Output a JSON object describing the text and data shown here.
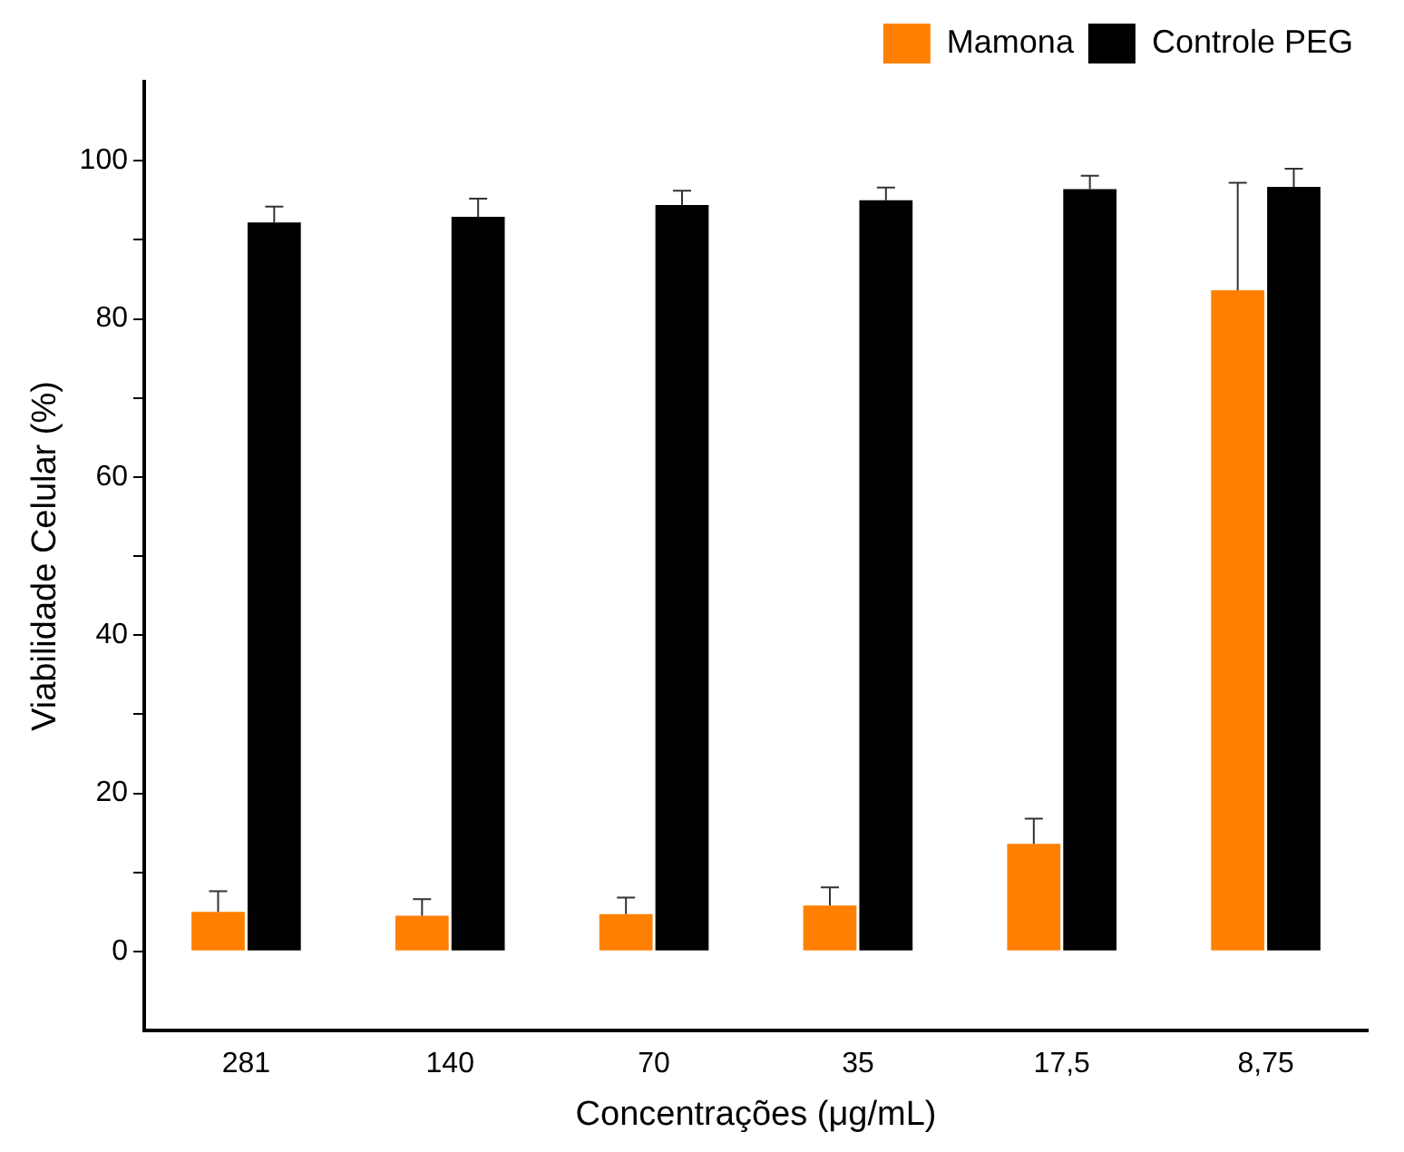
{
  "chart_data": {
    "type": "bar",
    "xlabel": "Concentrações (μg/mL)",
    "ylabel": "Viabilidade Celular (%)",
    "categories": [
      "281",
      "140",
      "70",
      "35",
      "17,5",
      "8,75"
    ],
    "series": [
      {
        "name": "Mamona",
        "color": "#ff8000",
        "values": [
          5.0,
          4.5,
          4.7,
          5.8,
          13.6,
          83.6
        ],
        "errors": [
          [
            5.0,
            7.6
          ],
          [
            4.5,
            6.6
          ],
          [
            4.7,
            6.8
          ],
          [
            5.8,
            8.1
          ],
          [
            13.6,
            16.8
          ],
          [
            83.6,
            97.2
          ]
        ]
      },
      {
        "name": "Controle PEG",
        "color": "#000000",
        "values": [
          92.2,
          92.9,
          94.4,
          95.0,
          96.4,
          96.7
        ],
        "errors": [
          [
            92.2,
            94.2
          ],
          [
            92.9,
            95.2
          ],
          [
            94.4,
            96.2
          ],
          [
            95.0,
            96.6
          ],
          [
            96.4,
            98.1
          ],
          [
            96.7,
            99.0
          ]
        ]
      }
    ],
    "ylim": [
      -10,
      110
    ],
    "yticks": [
      0,
      {
        "value": 10,
        "label": null
      },
      20,
      {
        "value": 30,
        "label": null
      },
      40,
      {
        "value": 50,
        "label": null
      },
      60,
      {
        "value": 70,
        "label": null
      },
      80,
      {
        "value": 90,
        "label": null
      },
      100
    ],
    "grid": false,
    "legend": "top right"
  }
}
